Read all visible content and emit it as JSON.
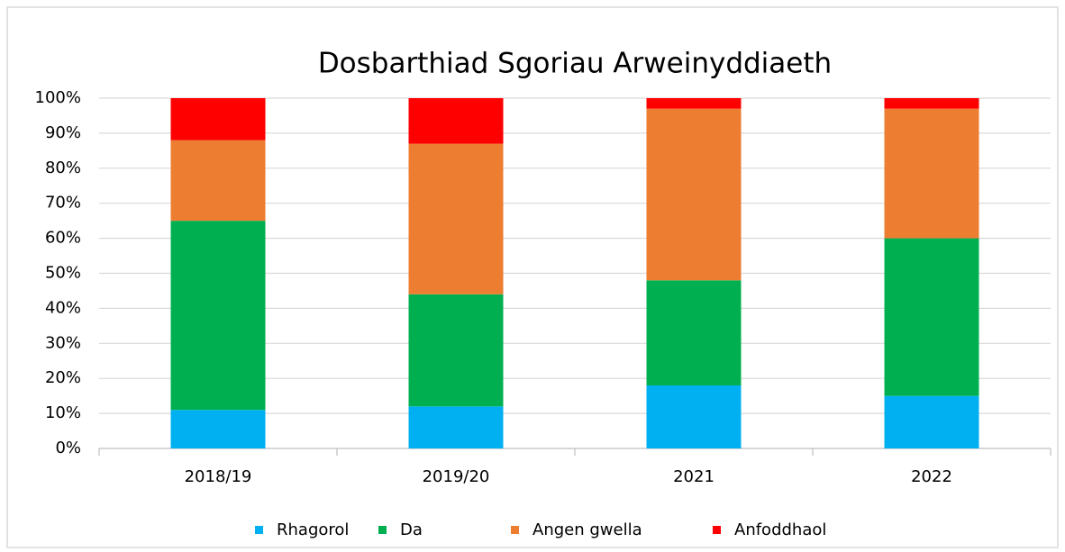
{
  "chart_data": {
    "type": "stacked_bar",
    "title": "Dosbarthiad Sgoriau Arweinyddiaeth",
    "categories": [
      "2018/19",
      "2019/20",
      "2021",
      "2022"
    ],
    "series": [
      {
        "name": "Rhagorol",
        "color": "#00b0f0",
        "values": [
          11,
          12,
          18,
          15
        ]
      },
      {
        "name": "Da",
        "color": "#00b050",
        "values": [
          54,
          32,
          30,
          45
        ]
      },
      {
        "name": "Angen gwella",
        "color": "#ed7d31",
        "values": [
          23,
          43,
          49,
          37
        ]
      },
      {
        "name": "Anfoddhaol",
        "color": "#ff0000",
        "values": [
          12,
          13,
          3,
          3
        ]
      }
    ],
    "ylim": [
      0,
      100
    ],
    "yticks": [
      {
        "value": 0,
        "label": "0%"
      },
      {
        "value": 10,
        "label": "10%"
      },
      {
        "value": 20,
        "label": "20%"
      },
      {
        "value": 30,
        "label": "30%"
      },
      {
        "value": 40,
        "label": "40%"
      },
      {
        "value": 50,
        "label": "50%"
      },
      {
        "value": 60,
        "label": "60%"
      },
      {
        "value": 70,
        "label": "70%"
      },
      {
        "value": 80,
        "label": "80%"
      },
      {
        "value": 90,
        "label": "90%"
      },
      {
        "value": 100,
        "label": "100%"
      }
    ],
    "grid": true,
    "legend": "bottom"
  }
}
